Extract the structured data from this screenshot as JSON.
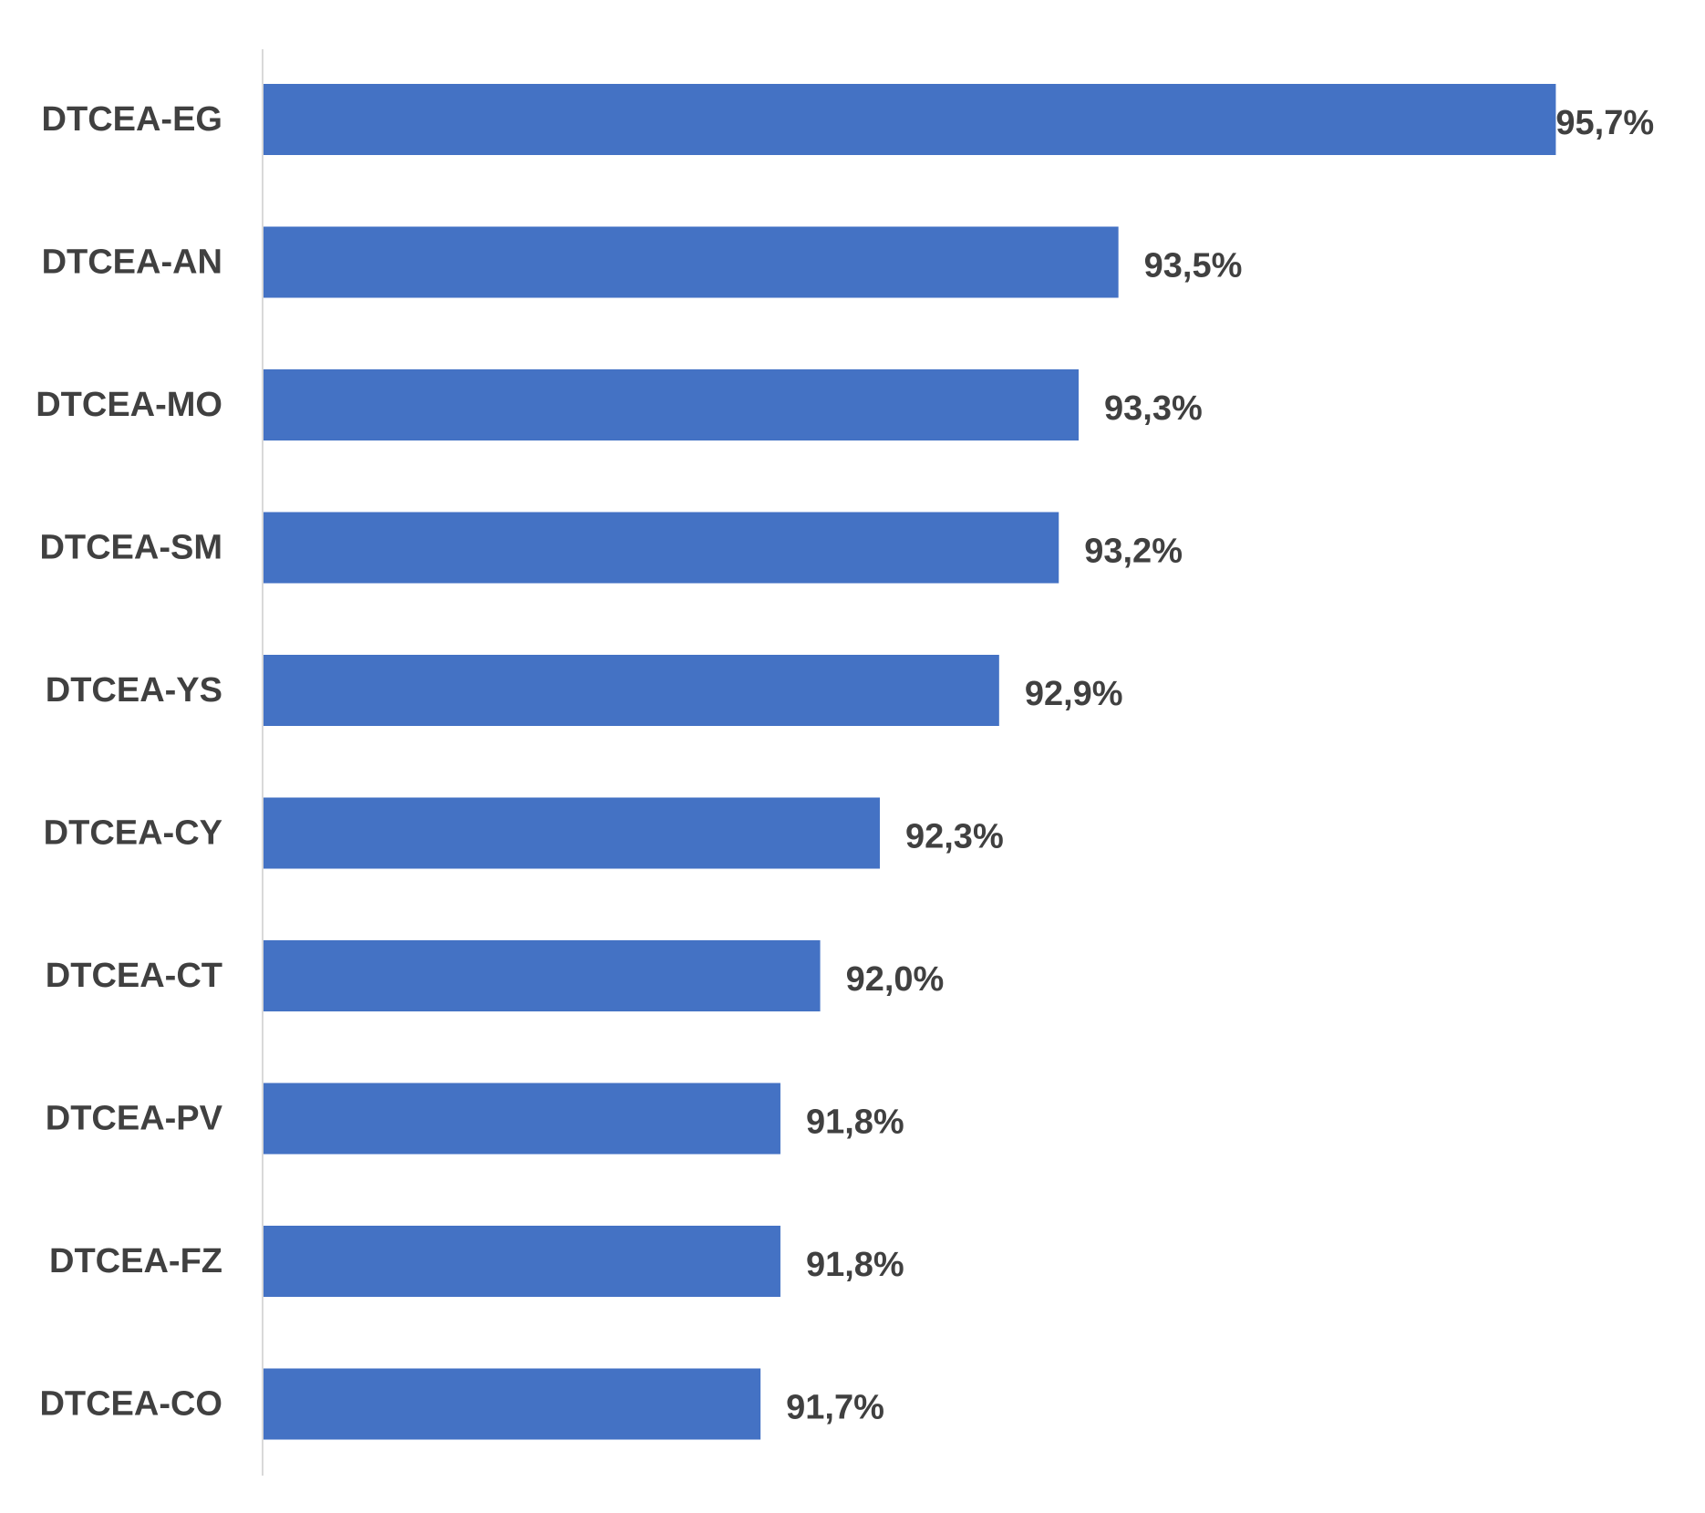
{
  "chart_data": {
    "type": "bar",
    "orientation": "horizontal",
    "categories": [
      "DTCEA-EG",
      "DTCEA-AN",
      "DTCEA-MO",
      "DTCEA-SM",
      "DTCEA-YS",
      "DTCEA-CY",
      "DTCEA-CT",
      "DTCEA-PV",
      "DTCEA-FZ",
      "DTCEA-CO"
    ],
    "values": [
      95.7,
      93.5,
      93.3,
      93.2,
      92.9,
      92.3,
      92.0,
      91.8,
      91.8,
      91.7
    ],
    "value_labels": [
      "95,7%",
      "93,5%",
      "93,3%",
      "93,2%",
      "92,9%",
      "92,3%",
      "92,0%",
      "91,8%",
      "91,8%",
      "91,7%"
    ],
    "title": "",
    "xlabel": "",
    "ylabel": "",
    "xlim": [
      89.2,
      95.9
    ],
    "grid": false,
    "legend": "none",
    "bar_color": "#4472C4",
    "axis_color": "#D9D9D9",
    "label_color": "#404040"
  }
}
